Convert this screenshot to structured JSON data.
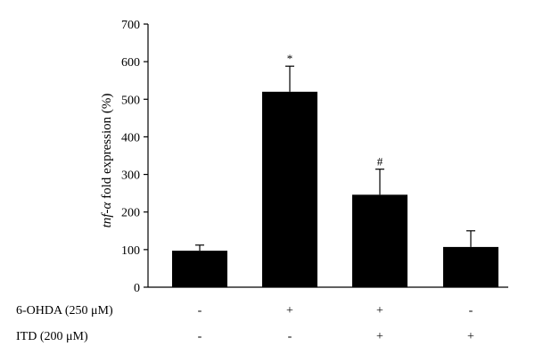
{
  "chart_data": {
    "type": "bar",
    "title": "",
    "ylabel_italic": "tnf-α",
    "ylabel_rest": " fold expression (%)",
    "ylim": [
      0,
      700
    ],
    "yticks": [
      0,
      100,
      200,
      300,
      400,
      500,
      600,
      700
    ],
    "grid": false,
    "colors": {
      "bar": "#000000",
      "axis": "#000000"
    },
    "bars": [
      {
        "value": 97,
        "error": 15,
        "annotation": ""
      },
      {
        "value": 520,
        "error": 68,
        "annotation": "*"
      },
      {
        "value": 246,
        "error": 68,
        "annotation": "#"
      },
      {
        "value": 107,
        "error": 43,
        "annotation": ""
      }
    ],
    "conditions": [
      {
        "label": "6-OHDA (250 μM)",
        "signs": [
          "-",
          "+",
          "+",
          "-"
        ]
      },
      {
        "label": "ITD (200 μM)",
        "signs": [
          "-",
          "-",
          "+",
          "+"
        ]
      }
    ]
  }
}
